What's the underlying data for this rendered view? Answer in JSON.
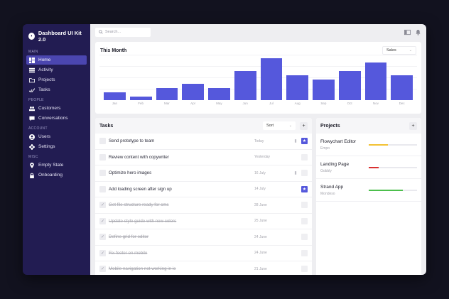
{
  "sidebar": {
    "brand": "Dashboard UI Kit 2.0",
    "sections": [
      {
        "label": "MAIN",
        "items": [
          {
            "label": "Home",
            "icon": "grid-icon",
            "active": true
          },
          {
            "label": "Activity",
            "icon": "list-icon"
          },
          {
            "label": "Projects",
            "icon": "folder-icon"
          },
          {
            "label": "Tasks",
            "icon": "check-icon"
          }
        ]
      },
      {
        "label": "PEOPLE",
        "items": [
          {
            "label": "Customers",
            "icon": "users-icon"
          },
          {
            "label": "Conversations",
            "icon": "chat-icon"
          }
        ]
      },
      {
        "label": "ACCOUNT",
        "items": [
          {
            "label": "Users",
            "icon": "user-icon"
          },
          {
            "label": "Settings",
            "icon": "gear-icon"
          }
        ]
      },
      {
        "label": "MISC",
        "items": [
          {
            "label": "Empty State",
            "icon": "bulb-icon"
          },
          {
            "label": "Onboarding",
            "icon": "lock-icon"
          }
        ]
      }
    ]
  },
  "topbar": {
    "search_placeholder": "Search..."
  },
  "chart_card": {
    "title": "This Month",
    "select_value": "Sales"
  },
  "chart_data": {
    "type": "bar",
    "title": "This Month",
    "categories": [
      "Jan",
      "Feb",
      "Mar",
      "Apr",
      "May",
      "Jun",
      "Jul",
      "Aug",
      "Sep",
      "Oct",
      "Nov",
      "Dec"
    ],
    "values": [
      11,
      5,
      17,
      23,
      17,
      41,
      59,
      35,
      29,
      41,
      53,
      35
    ],
    "xlabel": "",
    "ylabel": "Sales",
    "ylim": [
      0,
      64
    ],
    "grid": true,
    "legend": "none",
    "color": "#5558dc"
  },
  "tasks": {
    "title": "Tasks",
    "sort_label": "Sort",
    "add_label": "+",
    "rows": [
      {
        "title": "Send prototype to team",
        "date": "Today",
        "attach": true,
        "starred": true,
        "done": false
      },
      {
        "title": "Review content with copywriter",
        "date": "Yesterday",
        "attach": false,
        "starred": false,
        "done": false
      },
      {
        "title": "Optimize hero images",
        "date": "16 July",
        "attach": true,
        "starred": false,
        "done": false
      },
      {
        "title": "Add loading screen after sign up",
        "date": "14 July",
        "attach": false,
        "starred": true,
        "done": false
      },
      {
        "title": "Get file structure ready for cms",
        "date": "28 June",
        "attach": false,
        "starred": false,
        "done": true
      },
      {
        "title": "Update style guide with new colors",
        "date": "25 June",
        "attach": false,
        "starred": false,
        "done": true
      },
      {
        "title": "Define grid for editor",
        "date": "24 June",
        "attach": false,
        "starred": false,
        "done": true
      },
      {
        "title": "Fix footer on mobile",
        "date": "24 June",
        "attach": false,
        "starred": false,
        "done": true
      },
      {
        "title": "Mobile navigation not working in ie",
        "date": "21 June",
        "attach": false,
        "starred": false,
        "done": true
      }
    ]
  },
  "projects": {
    "title": "Projects",
    "add_label": "+",
    "rows": [
      {
        "name": "Flowychart Editor",
        "client": "Empo",
        "progress": 40,
        "color": "#f2c233"
      },
      {
        "name": "Landing Page",
        "client": "Gobbly",
        "progress": 20,
        "color": "#d93030"
      },
      {
        "name": "Strand App",
        "client": "Mondeso",
        "progress": 70,
        "color": "#4cbf4c"
      }
    ]
  }
}
